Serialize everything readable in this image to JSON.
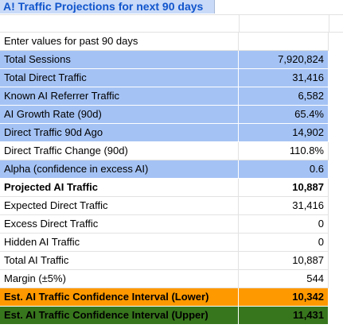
{
  "sheet": {
    "title": "A! Traffic Projections for next 90 days",
    "rows": [
      {
        "label": "Enter values for past 90 days",
        "value": "",
        "style": "plain"
      },
      {
        "label": "Total Sessions",
        "value": "7,920,824",
        "style": "blue"
      },
      {
        "label": "Total Direct Traffic",
        "value": "31,416",
        "style": "blue"
      },
      {
        "label": "Known AI Referrer Traffic",
        "value": "6,582",
        "style": "blue"
      },
      {
        "label": "AI Growth Rate (90d)",
        "value": "65.4%",
        "style": "blue"
      },
      {
        "label": "Direct Traffic 90d Ago",
        "value": "14,902",
        "style": "blue"
      },
      {
        "label": "Direct Traffic Change (90d)",
        "value": "110.8%",
        "style": "plain"
      },
      {
        "label": "Alpha (confidence in excess AI)",
        "value": "0.6",
        "style": "blue"
      },
      {
        "label": "Projected AI Traffic",
        "value": "10,887",
        "style": "bold"
      },
      {
        "label": "Expected Direct Traffic",
        "value": "31,416",
        "style": "plain"
      },
      {
        "label": "Excess Direct Traffic",
        "value": "0",
        "style": "plain"
      },
      {
        "label": "Hidden AI Traffic",
        "value": "0",
        "style": "plain"
      },
      {
        "label": "Total AI Traffic",
        "value": "10,887",
        "style": "plain"
      },
      {
        "label": "Margin (±5%)",
        "value": "544",
        "style": "plain"
      },
      {
        "label": "Est. AI Traffic Confidence Interval (Lower)",
        "value": "10,342",
        "style": "orange"
      },
      {
        "label": "Est. AI Traffic Confidence Interval (Upper)",
        "value": "11,431",
        "style": "green"
      }
    ]
  },
  "colors": {
    "title_bg": "#c9daf8",
    "title_text": "#1155cc",
    "input_bg": "#a4c2f4",
    "lower_bg": "#ff9900",
    "upper_bg": "#38761d"
  }
}
